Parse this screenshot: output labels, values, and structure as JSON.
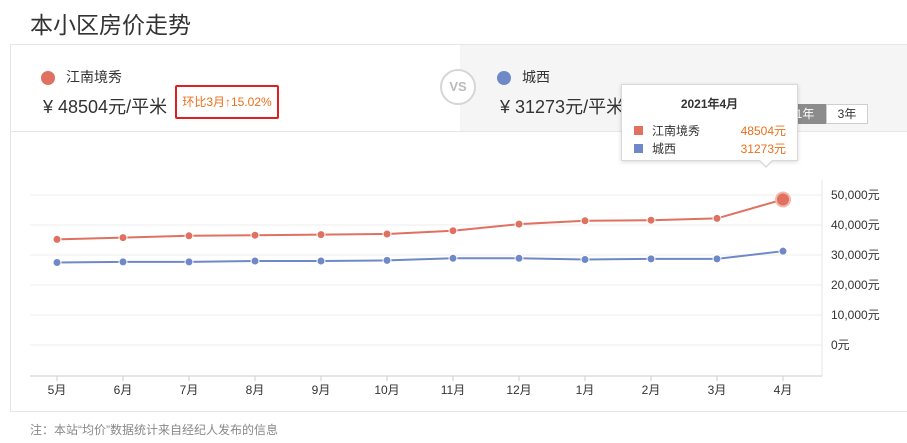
{
  "page": {
    "title": "本小区房价走势",
    "footnote": "注：本站“均价”数据统计来自经纪人发布的信息"
  },
  "compare": {
    "left": {
      "name": "江南境秀",
      "price": "¥ 48504元/平米",
      "change": "环比3月↑15.02%",
      "color": "#e07060"
    },
    "vs": "VS",
    "right": {
      "name": "城西",
      "price": "¥ 31273元/平米",
      "color": "#6f88c8"
    }
  },
  "range_buttons": {
    "one_year": "1年",
    "three_year": "3年",
    "active": "1年"
  },
  "tooltip": {
    "title": "2021年4月",
    "rows": [
      {
        "name": "江南境秀",
        "value": "48504元"
      },
      {
        "name": "城西",
        "value": "31273元"
      }
    ]
  },
  "chart_data": {
    "type": "line",
    "categories": [
      "5月",
      "6月",
      "7月",
      "8月",
      "9月",
      "10月",
      "11月",
      "12月",
      "1月",
      "2月",
      "3月",
      "4月"
    ],
    "series": [
      {
        "name": "江南境秀",
        "color": "#e07060",
        "values": [
          35200,
          35800,
          36400,
          36600,
          36800,
          37000,
          38100,
          40300,
          41400,
          41600,
          42200,
          48504
        ]
      },
      {
        "name": "城西",
        "color": "#6f88c8",
        "values": [
          27500,
          27700,
          27700,
          28000,
          28000,
          28200,
          28900,
          28900,
          28500,
          28700,
          28700,
          31273
        ]
      }
    ],
    "yticks": [
      "50,000元",
      "40,000元",
      "30,000元",
      "20,000元",
      "10,000元",
      "0元"
    ],
    "ylim": [
      0,
      50000
    ],
    "grid": true,
    "highlight_index": 11
  }
}
